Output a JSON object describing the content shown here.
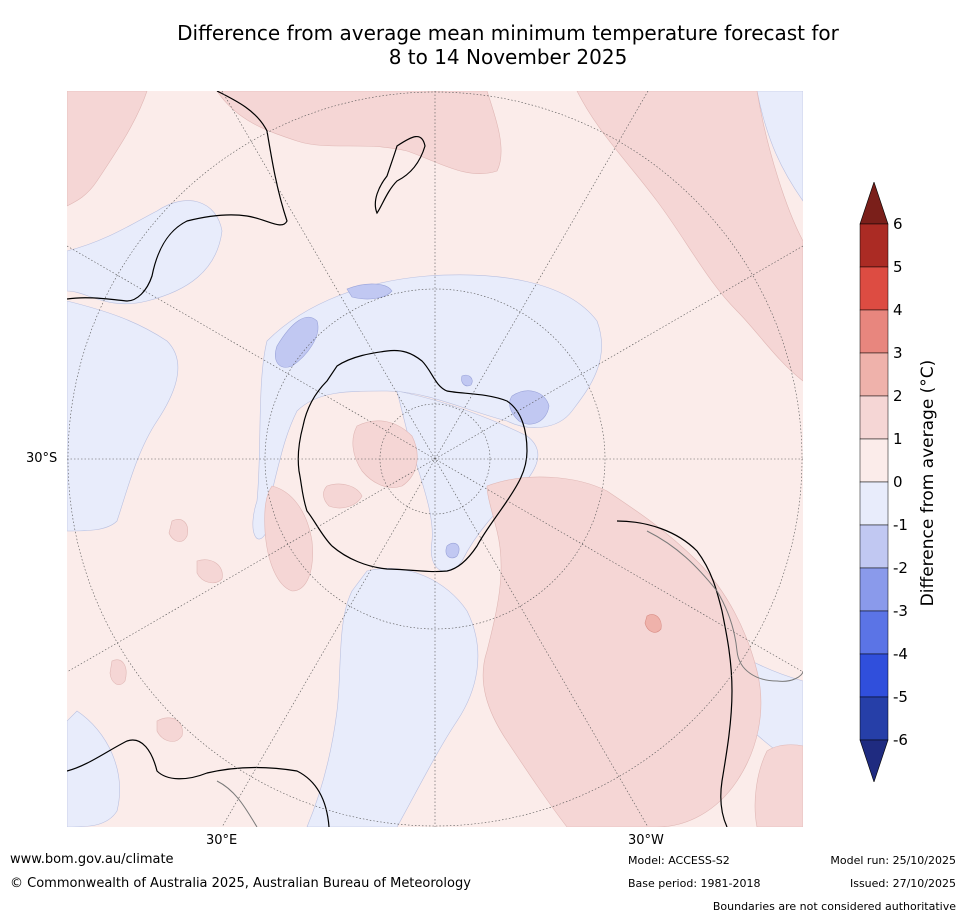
{
  "title": {
    "line1": "Difference from average mean minimum temperature forecast for",
    "line2": "8 to 14 November 2025"
  },
  "map": {
    "latitude_label": "30°S",
    "longitude_labels": [
      "30°E",
      "30°W"
    ]
  },
  "colorbar": {
    "label": "Difference from average (°C)",
    "ticks": [
      "6",
      "5",
      "4",
      "3",
      "2",
      "1",
      "0",
      "-1",
      "-2",
      "-3",
      "-4",
      "-5",
      "-6"
    ],
    "colors": {
      "gt6": "#7a1f1a",
      "5to6": "#ab2b24",
      "4to5": "#dd4c42",
      "3to4": "#e8867e",
      "2to3": "#efb2ab",
      "1to2": "#f5d6d5",
      "0to1": "#fbecea",
      "m1to0": "#e8ecfb",
      "m2tom1": "#c1c8f2",
      "m3tom2": "#8a9aeb",
      "m4tom3": "#5b74e6",
      "m5tom4": "#304fdc",
      "m6tom5": "#263fa8",
      "lt6": "#1f2b80"
    }
  },
  "footer": {
    "website": "www.bom.gov.au/climate",
    "copyright": "© Commonwealth of Australia 2025, Australian Bureau of Meteorology",
    "model": "Model: ACCESS-S2",
    "base_period": "Base period: 1981-2018",
    "model_run": "Model run: 25/10/2025",
    "issued": "Issued: 27/10/2025",
    "boundaries": "Boundaries are not considered authoritative"
  }
}
